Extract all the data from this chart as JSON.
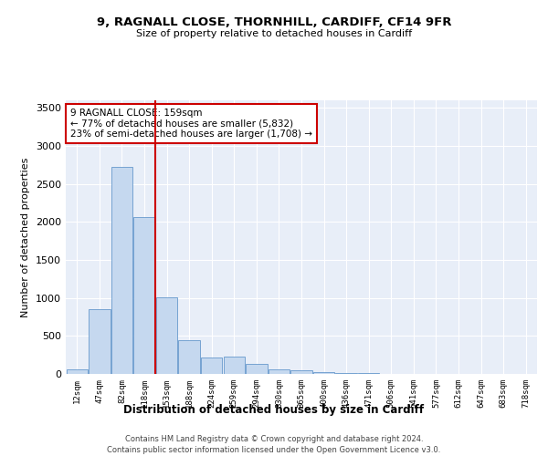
{
  "title_line1": "9, RAGNALL CLOSE, THORNHILL, CARDIFF, CF14 9FR",
  "title_line2": "Size of property relative to detached houses in Cardiff",
  "xlabel": "Distribution of detached houses by size in Cardiff",
  "ylabel": "Number of detached properties",
  "bar_labels": [
    "12sqm",
    "47sqm",
    "82sqm",
    "118sqm",
    "153sqm",
    "188sqm",
    "224sqm",
    "259sqm",
    "294sqm",
    "330sqm",
    "365sqm",
    "400sqm",
    "436sqm",
    "471sqm",
    "506sqm",
    "541sqm",
    "577sqm",
    "612sqm",
    "647sqm",
    "683sqm",
    "718sqm"
  ],
  "bar_values": [
    60,
    850,
    2720,
    2060,
    1010,
    450,
    220,
    225,
    130,
    60,
    50,
    25,
    15,
    10,
    5,
    2,
    0,
    0,
    0,
    0,
    0
  ],
  "bar_color": "#c5d8ef",
  "bar_edgecolor": "#6699cc",
  "vline_x": 3.5,
  "vline_color": "#cc0000",
  "annotation_text": "9 RAGNALL CLOSE: 159sqm\n← 77% of detached houses are smaller (5,832)\n23% of semi-detached houses are larger (1,708) →",
  "annotation_box_color": "#cc0000",
  "ylim": [
    0,
    3600
  ],
  "yticks": [
    0,
    500,
    1000,
    1500,
    2000,
    2500,
    3000,
    3500
  ],
  "footer_line1": "Contains HM Land Registry data © Crown copyright and database right 2024.",
  "footer_line2": "Contains public sector information licensed under the Open Government Licence v3.0.",
  "bg_color": "#e8eef8",
  "fig_bg_color": "#ffffff"
}
